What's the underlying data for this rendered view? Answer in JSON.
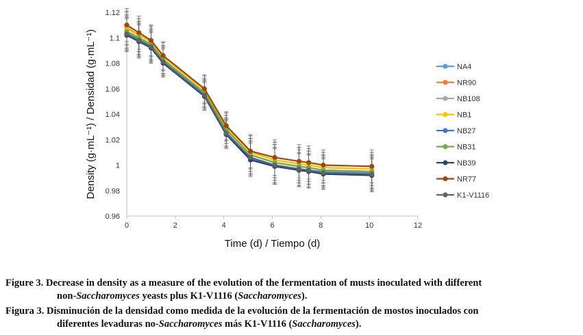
{
  "chart_data": {
    "type": "line",
    "xlabel": "Time (d) / Tiempo (d)",
    "ylabel": "Density (g·mL⁻¹) / Densidad (g·mL⁻¹)",
    "xlim": [
      0,
      12
    ],
    "ylim": [
      0.96,
      1.12
    ],
    "xticks": [
      0,
      2,
      4,
      6,
      8,
      10,
      12
    ],
    "xtick_labels": [
      "0",
      "2",
      "4",
      "6",
      "8",
      "10",
      "12"
    ],
    "yticks": [
      0.96,
      0.98,
      1.0,
      1.02,
      1.04,
      1.06,
      1.08,
      1.1,
      1.12
    ],
    "ytick_labels": [
      "0.96",
      "0.98",
      "1",
      "1.02",
      "1.04",
      "1.06",
      "1.08",
      "1.1",
      "1.12"
    ],
    "legend_position": "right",
    "grid": false,
    "x": [
      0,
      0.5,
      1,
      1.5,
      3.2,
      4.1,
      5.1,
      6.1,
      7.1,
      7.5,
      8.1,
      10.1
    ],
    "series": [
      {
        "name": "NA4",
        "color": "#5b9bd5",
        "values": [
          1.104,
          1.099,
          1.094,
          1.082,
          1.056,
          1.026,
          1.006,
          1.0,
          0.997,
          0.996,
          0.995,
          0.994
        ]
      },
      {
        "name": "NR90",
        "color": "#ed7d31",
        "values": [
          1.108,
          1.102,
          1.097,
          1.085,
          1.059,
          1.03,
          1.01,
          1.004,
          1.001,
          1.0,
          0.998,
          0.997
        ]
      },
      {
        "name": "NB108",
        "color": "#a5a5a5",
        "values": [
          1.105,
          1.1,
          1.095,
          1.083,
          1.057,
          1.028,
          1.008,
          1.002,
          0.999,
          0.998,
          0.996,
          0.995
        ]
      },
      {
        "name": "NB1",
        "color": "#ffc000",
        "values": [
          1.107,
          1.102,
          1.097,
          1.085,
          1.059,
          1.03,
          1.01,
          1.004,
          1.001,
          1.0,
          0.998,
          0.997
        ]
      },
      {
        "name": "NB27",
        "color": "#4472c4",
        "values": [
          1.103,
          1.098,
          1.093,
          1.081,
          1.055,
          1.025,
          1.005,
          0.999,
          0.996,
          0.995,
          0.993,
          0.992
        ]
      },
      {
        "name": "NB31",
        "color": "#70ad47",
        "values": [
          1.105,
          1.1,
          1.095,
          1.083,
          1.057,
          1.028,
          1.008,
          1.002,
          0.999,
          0.998,
          0.996,
          0.995
        ]
      },
      {
        "name": "NB39",
        "color": "#264478",
        "values": [
          1.102,
          1.097,
          1.092,
          1.08,
          1.054,
          1.024,
          1.004,
          0.999,
          0.996,
          0.995,
          0.993,
          0.992
        ]
      },
      {
        "name": "NR77",
        "color": "#9e480e",
        "values": [
          1.11,
          1.104,
          1.098,
          1.086,
          1.06,
          1.031,
          1.011,
          1.006,
          1.003,
          1.002,
          1.0,
          0.999
        ]
      },
      {
        "name": "K1-V1116",
        "color": "#636363",
        "values": [
          1.103,
          1.098,
          1.093,
          1.081,
          1.055,
          1.025,
          1.006,
          1.0,
          0.997,
          0.996,
          0.994,
          0.993
        ]
      }
    ],
    "error": [
      0.013,
      0.013,
      0.012,
      0.011,
      0.011,
      0.011,
      0.013,
      0.014,
      0.013,
      0.013,
      0.012,
      0.013
    ]
  },
  "caption": {
    "en_lead": "Figure 3.",
    "en_text_1": " Decrease in density as a measure of the evolution of the fermentation of musts inoculated with different",
    "en_text_2a": "non-",
    "en_text_2b": "Saccharomyces",
    "en_text_2c": " yeasts plus K1-V1116 (",
    "en_text_2d": "Saccharomyces",
    "en_text_2e": ").",
    "es_lead": "Figura 3.",
    "es_text_1": " Disminución de la densidad como medida de la evolución de la fermentación de mostos inoculados con",
    "es_text_2a": "diferentes levaduras no-",
    "es_text_2b": "Saccharomyces",
    "es_text_2c": "  más K1-V1116 (",
    "es_text_2d": "Saccharomyces",
    "es_text_2e": ")."
  }
}
